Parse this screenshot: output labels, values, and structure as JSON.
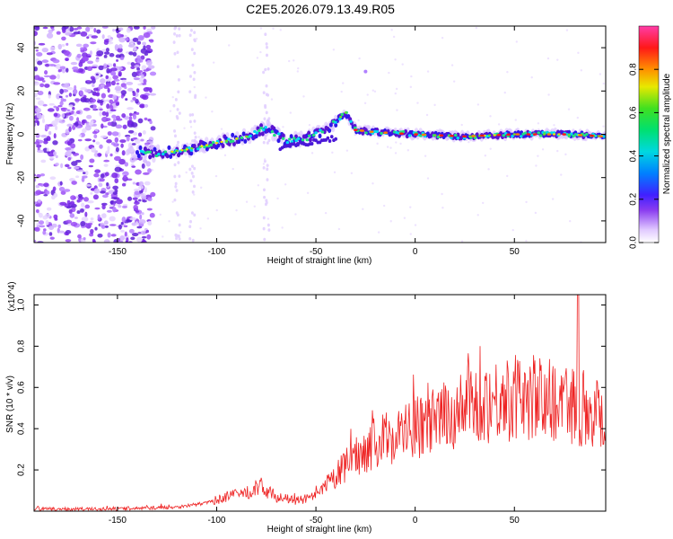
{
  "figure_title": "C2E5.2026.079.13.49.R05",
  "chart_data": [
    {
      "type": "heatmap",
      "name": "spectrogram",
      "xlabel": "Height of straight line (km)",
      "ylabel": "Frequency (Hz)",
      "xlim": [
        -192,
        96
      ],
      "ylim": [
        -50,
        50
      ],
      "xticks": [
        -150,
        -100,
        -50,
        0,
        50
      ],
      "xtick_labels": [
        "-150",
        "-100",
        "-50",
        "0",
        "50"
      ],
      "yticks": [
        -40,
        -20,
        0,
        20,
        40
      ],
      "ytick_labels": [
        "-40",
        "-20",
        "0",
        "20",
        "40"
      ],
      "ridge": {
        "description": "dominant frequency track",
        "x": [
          -145,
          -130,
          -115,
          -100,
          -85,
          -75,
          -65,
          -55,
          -45,
          -35,
          -30,
          -20,
          0,
          25,
          50,
          75,
          96
        ],
        "y": [
          -8,
          -9,
          -7,
          -4,
          -1,
          3,
          -3,
          -2,
          2,
          10,
          2,
          1,
          0,
          -1,
          0,
          0,
          -1
        ]
      },
      "noise_region_x": [
        -192,
        -132
      ],
      "colorbar": {
        "label": "Normalized spectral amplitude",
        "range": [
          0.0,
          1.0
        ],
        "ticks": [
          0.0,
          0.2,
          0.4,
          0.6,
          0.8
        ],
        "tick_labels": [
          "0.0",
          "0.2",
          "0.4",
          "0.6",
          "0.8"
        ],
        "colors": [
          "#ffffff",
          "#e8d8ff",
          "#b070ff",
          "#6a1ee0",
          "#2828ff",
          "#00c8ff",
          "#00e8a0",
          "#40e030",
          "#e8e800",
          "#ff8000",
          "#ff1010",
          "#ff3ca0"
        ]
      }
    },
    {
      "type": "line",
      "name": "snr",
      "xlabel": "Height of straight line (km)",
      "ylabel": "SNR (10 * v/v)",
      "y_multiplier": "(x10^4)",
      "color": "#ee2222",
      "xlim": [
        -192,
        96
      ],
      "ylim": [
        0,
        1.05
      ],
      "xticks": [
        -150,
        -100,
        -50,
        0,
        50
      ],
      "xtick_labels": [
        "-150",
        "-100",
        "-50",
        "0",
        "50"
      ],
      "yticks": [
        0.2,
        0.4,
        0.6,
        0.8,
        1.0
      ],
      "ytick_labels": [
        "0.2",
        "0.4",
        "0.6",
        "0.8",
        "1.0"
      ],
      "trend": {
        "x": [
          -192,
          -150,
          -120,
          -105,
          -95,
          -85,
          -78,
          -70,
          -60,
          -50,
          -40,
          -30,
          -20,
          -10,
          0,
          10,
          20,
          30,
          40,
          50,
          60,
          70,
          80,
          90,
          96
        ],
        "y": [
          0.01,
          0.01,
          0.02,
          0.04,
          0.07,
          0.09,
          0.12,
          0.07,
          0.05,
          0.07,
          0.17,
          0.27,
          0.33,
          0.37,
          0.4,
          0.43,
          0.48,
          0.52,
          0.54,
          0.55,
          0.55,
          0.54,
          0.52,
          0.49,
          0.46
        ]
      },
      "peak": {
        "x": 82,
        "y": 1.05
      }
    }
  ]
}
